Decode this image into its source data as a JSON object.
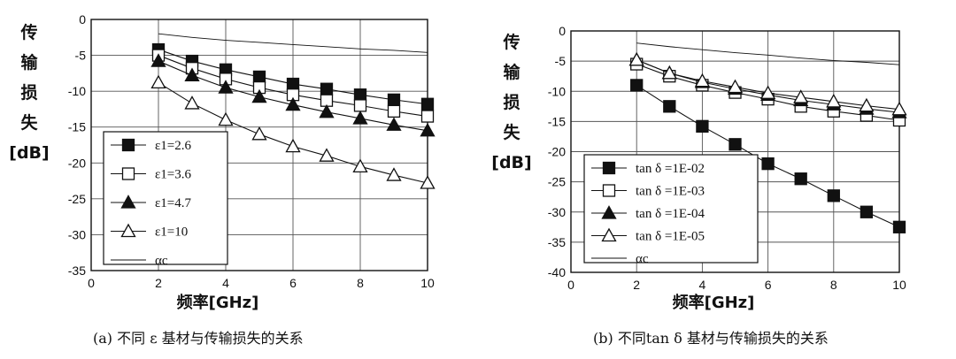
{
  "chart_data": [
    {
      "type": "line",
      "ylabel_chars": [
        "传",
        "输",
        "损",
        "失",
        "[dB]"
      ],
      "xlabel": "频率[GHz]",
      "caption": "(a) 不同 ε 基材与传输损失的关系",
      "xlim": [
        0,
        10
      ],
      "ylim": [
        -35,
        0
      ],
      "xticks": [
        0,
        2,
        4,
        6,
        8,
        10
      ],
      "yticks": [
        0,
        -5,
        -10,
        -15,
        -20,
        -25,
        -30,
        -35
      ],
      "grid": true,
      "legend_position": "bottom-left",
      "series": [
        {
          "name": "ε1=2.6",
          "marker": "filled-square",
          "x": [
            2,
            3,
            4,
            5,
            6,
            7,
            8,
            9,
            10
          ],
          "y": [
            -4.2,
            -5.8,
            -7.0,
            -8.0,
            -9.0,
            -9.7,
            -10.5,
            -11.2,
            -11.8
          ]
        },
        {
          "name": "ε1=3.6",
          "marker": "open-square",
          "x": [
            2,
            3,
            4,
            5,
            6,
            7,
            8,
            9,
            10
          ],
          "y": [
            -5.0,
            -6.8,
            -8.3,
            -9.5,
            -10.5,
            -11.3,
            -12.0,
            -12.8,
            -13.5
          ]
        },
        {
          "name": "ε1=4.7",
          "marker": "filled-triangle",
          "x": [
            2,
            3,
            4,
            5,
            6,
            7,
            8,
            9,
            10
          ],
          "y": [
            -5.8,
            -7.8,
            -9.5,
            -10.8,
            -11.9,
            -12.9,
            -13.8,
            -14.7,
            -15.5
          ]
        },
        {
          "name": "ε1=10",
          "marker": "open-triangle",
          "x": [
            2,
            3,
            4,
            5,
            6,
            7,
            8,
            9,
            10
          ],
          "y": [
            -8.8,
            -11.7,
            -14.0,
            -16.0,
            -17.7,
            -19.0,
            -20.5,
            -21.7,
            -22.8
          ]
        },
        {
          "name": "αc",
          "marker": "none",
          "x": [
            2,
            3,
            4,
            5,
            6,
            7,
            8,
            9,
            10
          ],
          "y": [
            -2.0,
            -2.5,
            -2.9,
            -3.2,
            -3.5,
            -3.8,
            -4.1,
            -4.3,
            -4.6
          ]
        }
      ]
    },
    {
      "type": "line",
      "ylabel_chars": [
        "传",
        "输",
        "损",
        "失",
        "[dB]"
      ],
      "xlabel": "频率[GHz]",
      "caption": "(b) 不同tan δ 基材与传输损失的关系",
      "xlim": [
        0,
        10
      ],
      "ylim": [
        -40,
        0
      ],
      "xticks": [
        0,
        2,
        4,
        6,
        8,
        10
      ],
      "yticks": [
        0,
        -5,
        -10,
        -15,
        -20,
        -25,
        -30,
        -35,
        -40
      ],
      "grid": true,
      "legend_position": "bottom-left",
      "series": [
        {
          "name": "tan δ =1E-02",
          "marker": "filled-square",
          "x": [
            2,
            3,
            4,
            5,
            6,
            7,
            8,
            9,
            10
          ],
          "y": [
            -9.0,
            -12.5,
            -15.8,
            -18.8,
            -22.0,
            -24.5,
            -27.3,
            -30.0,
            -32.5
          ]
        },
        {
          "name": "tan δ =1E-03",
          "marker": "open-square",
          "x": [
            2,
            3,
            4,
            5,
            6,
            7,
            8,
            9,
            10
          ],
          "y": [
            -5.5,
            -7.5,
            -9.0,
            -10.2,
            -11.3,
            -12.5,
            -13.3,
            -14.0,
            -14.8
          ]
        },
        {
          "name": "tan δ =1E-04",
          "marker": "filled-triangle",
          "x": [
            2,
            3,
            4,
            5,
            6,
            7,
            8,
            9,
            10
          ],
          "y": [
            -4.8,
            -7.0,
            -8.5,
            -9.6,
            -10.6,
            -11.5,
            -12.2,
            -12.9,
            -13.5
          ]
        },
        {
          "name": "tan δ =1E-05",
          "marker": "open-triangle",
          "x": [
            2,
            3,
            4,
            5,
            6,
            7,
            8,
            9,
            10
          ],
          "y": [
            -4.8,
            -7.0,
            -8.3,
            -9.3,
            -10.3,
            -11.0,
            -11.7,
            -12.4,
            -13.0
          ]
        },
        {
          "name": "αc",
          "marker": "none",
          "x": [
            2,
            3,
            4,
            5,
            6,
            7,
            8,
            9,
            10
          ],
          "y": [
            -2.0,
            -2.6,
            -3.1,
            -3.6,
            -4.0,
            -4.5,
            -4.9,
            -5.2,
            -5.6
          ]
        }
      ]
    }
  ]
}
